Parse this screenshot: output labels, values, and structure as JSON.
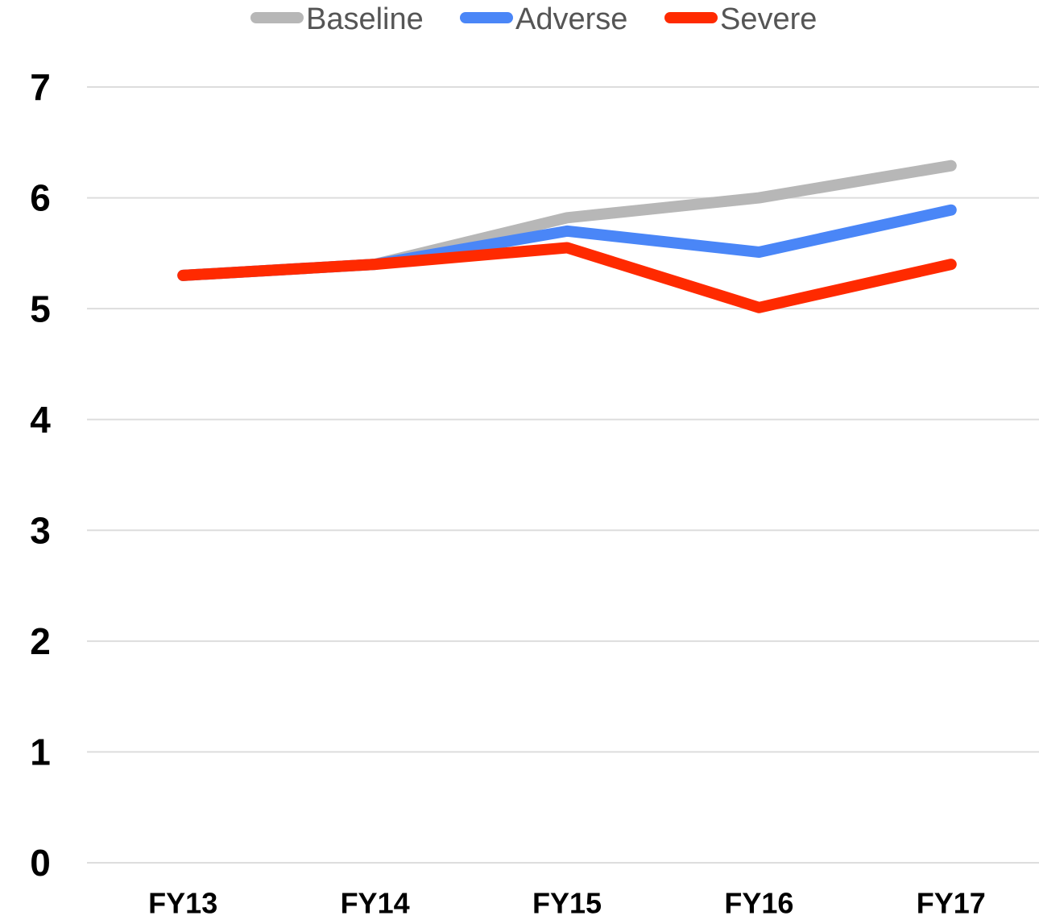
{
  "chart_data": {
    "type": "line",
    "categories": [
      "FY13",
      "FY14",
      "FY15",
      "FY16",
      "FY17"
    ],
    "series": [
      {
        "name": "Baseline",
        "color": "#b7b7b7",
        "values": [
          5.3,
          5.4,
          5.82,
          6.0,
          6.29
        ]
      },
      {
        "name": "Adverse",
        "color": "#4a86f7",
        "values": [
          5.3,
          5.4,
          5.7,
          5.51,
          5.89
        ]
      },
      {
        "name": "Severe",
        "color": "#ff2a00",
        "values": [
          5.3,
          5.4,
          5.55,
          5.01,
          5.4
        ]
      }
    ],
    "ylim": [
      0,
      7
    ],
    "yticks": [
      0,
      1,
      2,
      3,
      4,
      5,
      6,
      7
    ],
    "grid": true,
    "legend": "top"
  }
}
